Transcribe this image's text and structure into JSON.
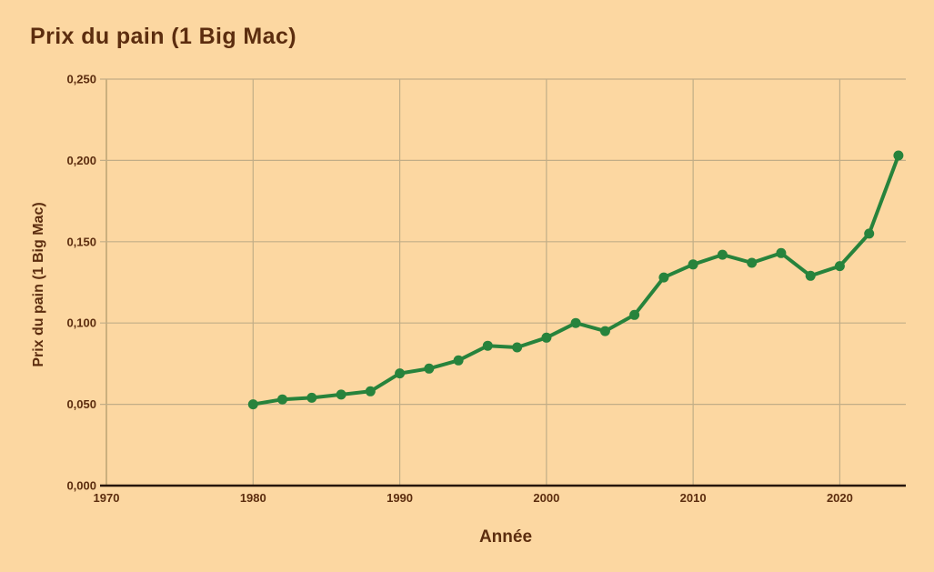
{
  "chart": {
    "title": "Prix du pain (1 Big Mac)",
    "xlabel": "Année",
    "ylabel": "Prix du pain (1 Big Mac)"
  },
  "colors": {
    "background": "#FCD7A1",
    "text": "#5C2D0F",
    "line": "#27833C",
    "marker": "#27833C",
    "grid": "#C1AD87",
    "axis_left": "#AB9768",
    "axis_bottom": "#26160A"
  },
  "chart_data": {
    "type": "line",
    "title": "Prix du pain (1 Big Mac)",
    "xlabel": "Année",
    "ylabel": "Prix du pain (1 Big Mac)",
    "x": [
      1980,
      1982,
      1984,
      1986,
      1988,
      1990,
      1992,
      1994,
      1996,
      1998,
      2000,
      2002,
      2004,
      2006,
      2008,
      2010,
      2012,
      2014,
      2016,
      2018,
      2020,
      2022,
      2024
    ],
    "y": [
      0.05,
      0.053,
      0.054,
      0.056,
      0.058,
      0.069,
      0.072,
      0.077,
      0.086,
      0.085,
      0.091,
      0.1,
      0.095,
      0.105,
      0.128,
      0.136,
      0.142,
      0.137,
      0.143,
      0.129,
      0.135,
      0.155,
      0.203
    ],
    "xlim": [
      1970,
      2024.5
    ],
    "ylim": [
      0.0,
      0.25
    ],
    "xticks": [
      1970,
      1980,
      1990,
      2000,
      2010,
      2020
    ],
    "xtick_labels": [
      "1970",
      "1980",
      "1990",
      "2000",
      "2010",
      "2020"
    ],
    "yticks": [
      0.0,
      0.05,
      0.1,
      0.15,
      0.2,
      0.25
    ],
    "ytick_labels": [
      "0,000",
      "0,050",
      "0,100",
      "0,150",
      "0,200",
      "0,250"
    ],
    "grid": true,
    "legend": false,
    "series_name": "Prix du pain (1 Big Mac)"
  }
}
